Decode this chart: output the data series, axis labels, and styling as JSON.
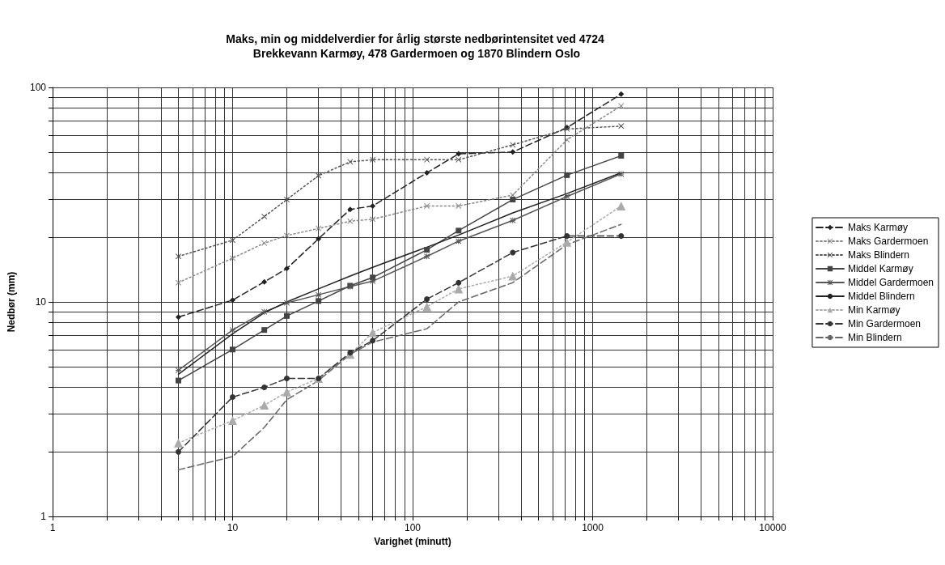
{
  "chart_data": {
    "type": "line",
    "title": "Maks, min og middelverdier for årlig største nedbørintensitet ved 4724 Brekkevann Karmøy, 478 Gardermoen og 1870 Blindern Oslo",
    "xlabel": "Varighet (minutt)",
    "ylabel": "Nedbør (mm)",
    "x": [
      5,
      10,
      15,
      20,
      30,
      45,
      60,
      120,
      180,
      360,
      720,
      1440
    ],
    "series": [
      {
        "name": "Maks Karmøy",
        "color": "#222222",
        "marker": "diamond",
        "line_style": "dashed",
        "values": [
          8.5,
          10.2,
          12.4,
          14.3,
          19.7,
          27,
          28,
          40,
          49,
          50,
          65,
          93
        ]
      },
      {
        "name": "Maks Gardermoen",
        "color": "#888888",
        "marker": "cross",
        "line_style": "dotted",
        "values": [
          12.3,
          16,
          18.8,
          20.4,
          22,
          23.8,
          24.3,
          28,
          28,
          31.5,
          57,
          82
        ]
      },
      {
        "name": "Maks Blindern",
        "color": "#555555",
        "marker": "cross",
        "line_style": "dotted",
        "values": [
          16.3,
          19.4,
          25,
          30,
          38.8,
          45,
          46,
          46,
          46,
          54,
          64,
          66
        ]
      },
      {
        "name": "Middel Karmøy",
        "color": "#444444",
        "marker": "square",
        "line_style": "solid",
        "values": [
          4.3,
          6,
          7.4,
          8.6,
          10.1,
          11.9,
          13,
          17.5,
          21.5,
          30,
          39,
          48
        ]
      },
      {
        "name": "Middel Gardermoen",
        "color": "#555555",
        "marker": "star",
        "line_style": "solid",
        "values": [
          4.8,
          7.4,
          9,
          9.9,
          10.8,
          11.8,
          12.5,
          16.3,
          19.2,
          24,
          31,
          39.5
        ]
      },
      {
        "name": "Middel Blindern",
        "color": "#222222",
        "marker": "none",
        "line_style": "solid",
        "values": [
          4.6,
          7.1,
          8.9,
          10,
          11.5,
          13.2,
          14.5,
          18,
          20.5,
          26,
          32,
          40
        ]
      },
      {
        "name": "Min Karmøy",
        "color": "#aaaaaa",
        "marker": "triangle",
        "line_style": "dotted",
        "values": [
          2.2,
          2.8,
          3.3,
          3.8,
          4.4,
          5.7,
          7.2,
          9.5,
          11.5,
          13.2,
          19,
          28
        ]
      },
      {
        "name": "Min Gardermoen",
        "color": "#333333",
        "marker": "circle",
        "line_style": "dashed",
        "values": [
          2,
          3.6,
          4,
          4.4,
          4.4,
          5.8,
          6.6,
          10.3,
          12.3,
          17,
          20.3,
          20.3
        ]
      },
      {
        "name": "Min Blindern",
        "color": "#666666",
        "marker": "none",
        "line_style": "dashed",
        "values": [
          1.65,
          1.9,
          2.6,
          3.5,
          4.3,
          5.7,
          6.5,
          7.5,
          10,
          12.3,
          18.5,
          23
        ]
      }
    ],
    "xlim": [
      1,
      10000
    ],
    "xticks": [
      1,
      10,
      100,
      1000,
      10000
    ],
    "ylim": [
      1,
      100
    ],
    "yticks": [
      1,
      10,
      100
    ],
    "log": "xy",
    "grid": true,
    "legend": "right"
  }
}
